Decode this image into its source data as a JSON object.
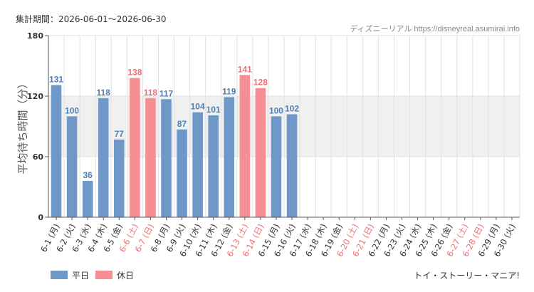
{
  "header": {
    "period_label": "集計期間：2026-06-01～2026-06-30",
    "source": "ディズニーリアル https://disneyreal.asumirai.info",
    "attraction": "トイ・ストーリー・マニア!"
  },
  "colors": {
    "weekday": "#6f97c8",
    "weekday_label": "#4f7fb6",
    "holiday": "#f58f93",
    "holiday_label": "#ef6f75",
    "band": "#f0f0f0",
    "grid": "#e2e2e2",
    "axis": "#555555"
  },
  "chart_data": {
    "type": "bar",
    "ylabel": "平均待ち時間（分）",
    "ylim": [
      0,
      180
    ],
    "yticks": [
      0,
      60,
      120,
      180
    ],
    "band_range": [
      60,
      120
    ],
    "grid": true,
    "legend_position": "bottom-left",
    "categories": [
      "6-1 (月)",
      "6-2 (火)",
      "6-3 (水)",
      "6-4 (木)",
      "6-5 (金)",
      "6-6 (土)",
      "6-7 (日)",
      "6-8 (月)",
      "6-9 (火)",
      "6-10 (水)",
      "6-11 (木)",
      "6-12 (金)",
      "6-13 (土)",
      "6-14 (日)",
      "6-15 (月)",
      "6-16 (火)",
      "6-17 (水)",
      "6-18 (木)",
      "6-19 (金)",
      "6-20 (土)",
      "6-21 (日)",
      "6-22 (月)",
      "6-23 (火)",
      "6-24 (水)",
      "6-25 (木)",
      "6-26 (金)",
      "6-27 (土)",
      "6-28 (日)",
      "6-29 (月)",
      "6-30 (火)"
    ],
    "holiday": [
      false,
      false,
      false,
      false,
      false,
      true,
      true,
      false,
      false,
      false,
      false,
      false,
      true,
      true,
      false,
      false,
      false,
      false,
      false,
      true,
      true,
      false,
      false,
      false,
      false,
      false,
      true,
      true,
      false,
      false
    ],
    "values": [
      131,
      100,
      36,
      118,
      77,
      138,
      118,
      117,
      87,
      104,
      101,
      119,
      141,
      128,
      100,
      102,
      null,
      null,
      null,
      null,
      null,
      null,
      null,
      null,
      null,
      null,
      null,
      null,
      null,
      null
    ],
    "series": [
      {
        "name": "平日"
      },
      {
        "name": "休日"
      }
    ]
  }
}
